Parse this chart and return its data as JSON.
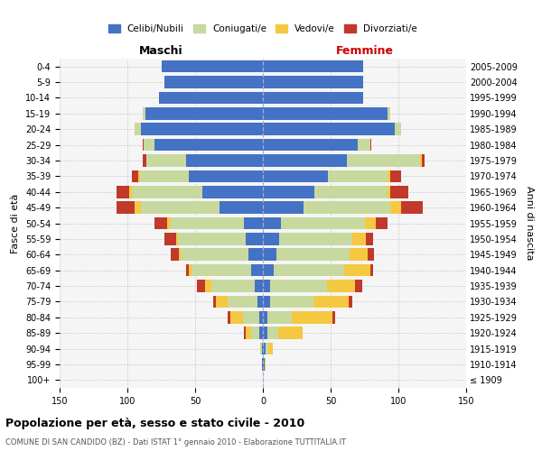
{
  "age_groups": [
    "100+",
    "95-99",
    "90-94",
    "85-89",
    "80-84",
    "75-79",
    "70-74",
    "65-69",
    "60-64",
    "55-59",
    "50-54",
    "45-49",
    "40-44",
    "35-39",
    "30-34",
    "25-29",
    "20-24",
    "15-19",
    "10-14",
    "5-9",
    "0-4"
  ],
  "birth_years": [
    "≤ 1909",
    "1910-1914",
    "1915-1919",
    "1920-1924",
    "1925-1929",
    "1930-1934",
    "1935-1939",
    "1940-1944",
    "1945-1949",
    "1950-1954",
    "1955-1959",
    "1960-1964",
    "1965-1969",
    "1970-1974",
    "1975-1979",
    "1980-1984",
    "1985-1989",
    "1990-1994",
    "1995-1999",
    "2000-2004",
    "2005-2009"
  ],
  "male_celibi": [
    0,
    1,
    1,
    3,
    3,
    4,
    6,
    9,
    11,
    13,
    14,
    32,
    45,
    55,
    57,
    80,
    90,
    87,
    77,
    73,
    75
  ],
  "male_coniugati": [
    0,
    0,
    1,
    6,
    12,
    22,
    32,
    44,
    50,
    50,
    54,
    58,
    52,
    36,
    29,
    8,
    5,
    2,
    0,
    0,
    0
  ],
  "male_vedovi": [
    0,
    0,
    0,
    4,
    9,
    9,
    5,
    2,
    1,
    1,
    3,
    5,
    2,
    1,
    0,
    0,
    0,
    0,
    0,
    0,
    0
  ],
  "male_divorziati": [
    0,
    0,
    0,
    1,
    2,
    2,
    6,
    2,
    6,
    9,
    9,
    13,
    9,
    5,
    3,
    1,
    0,
    0,
    0,
    0,
    0
  ],
  "female_celibi": [
    0,
    1,
    2,
    3,
    3,
    5,
    5,
    8,
    10,
    12,
    13,
    30,
    38,
    48,
    62,
    70,
    97,
    92,
    74,
    74,
    74
  ],
  "female_coniugati": [
    0,
    0,
    2,
    8,
    18,
    32,
    42,
    52,
    54,
    54,
    62,
    64,
    54,
    44,
    54,
    9,
    5,
    2,
    0,
    0,
    0
  ],
  "female_vedovi": [
    0,
    1,
    3,
    18,
    30,
    26,
    21,
    19,
    13,
    10,
    8,
    8,
    2,
    2,
    1,
    0,
    0,
    0,
    0,
    0,
    0
  ],
  "female_divorziati": [
    0,
    0,
    0,
    0,
    2,
    3,
    5,
    2,
    5,
    5,
    9,
    16,
    13,
    8,
    2,
    1,
    0,
    0,
    0,
    0,
    0
  ],
  "color_celibi": "#4472C4",
  "color_coniugati": "#C8D9A0",
  "color_vedovi": "#F5C842",
  "color_divorziati": "#C0392B",
  "title": "Popolazione per età, sesso e stato civile - 2010",
  "subtitle": "COMUNE DI SAN CANDIDO (BZ) - Dati ISTAT 1° gennaio 2010 - Elaborazione TUTTITALIA.IT",
  "label_maschi": "Maschi",
  "label_femmine": "Femmine",
  "ylabel_left": "Fasce di età",
  "ylabel_right": "Anni di nascita",
  "xlim": 150,
  "bg_color": "#f5f5f5",
  "grid_color": "#cccccc",
  "legend_labels": [
    "Celibi/Nubili",
    "Coniugati/e",
    "Vedovi/e",
    "Divorziati/e"
  ]
}
